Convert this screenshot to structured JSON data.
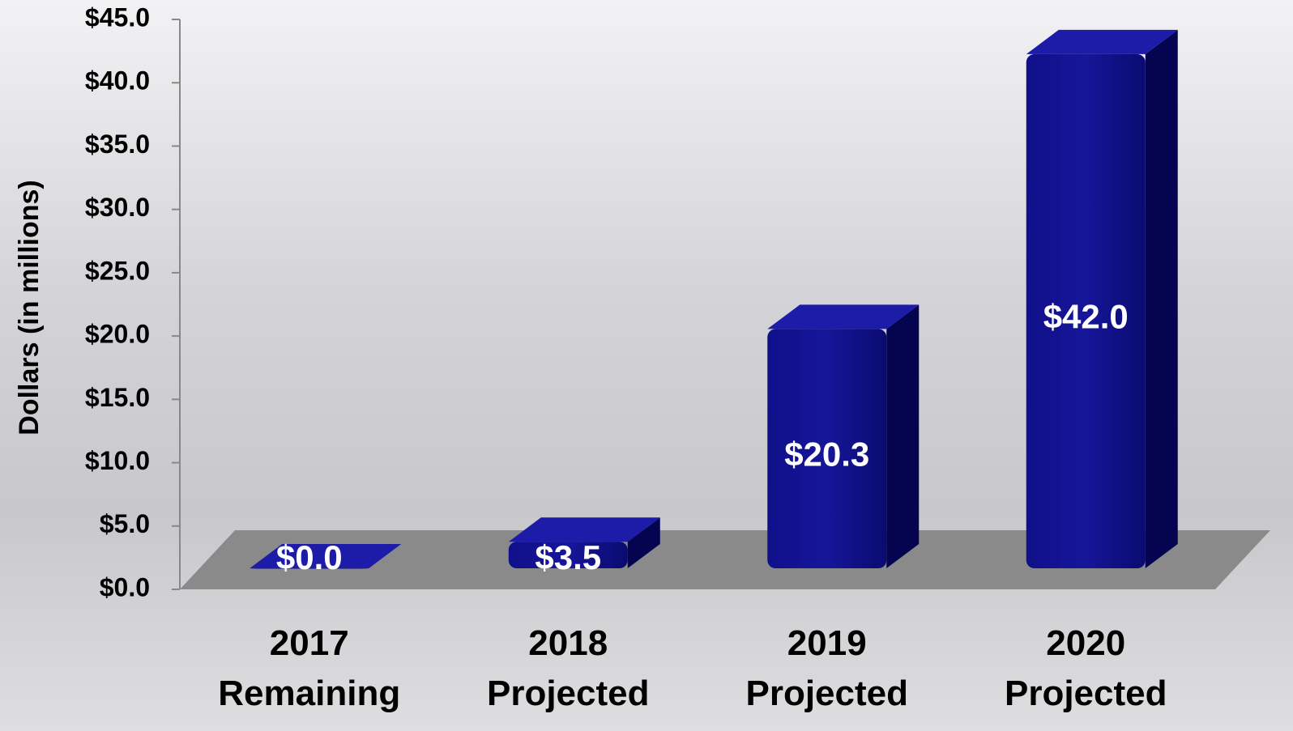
{
  "chart_data": {
    "type": "bar",
    "y_axis_label": "Dollars (in millions)",
    "categories": [
      "2017\nRemaining",
      "2018\nProjected",
      "2019\nProjected",
      "2020\nProjected"
    ],
    "values": [
      0,
      3.5,
      20.3,
      42.0
    ],
    "value_labels": [
      "$0.0",
      "$3.5",
      "$20.3",
      "$42.0"
    ],
    "color": "#0a0a78",
    "ylim": [
      0,
      45
    ],
    "yticks": [
      {
        "value": 0,
        "label": "$0.0"
      },
      {
        "value": 5,
        "label": "$5.0"
      },
      {
        "value": 10,
        "label": "$10.0"
      },
      {
        "value": 15,
        "label": "$15.0"
      },
      {
        "value": 20,
        "label": "$20.0"
      },
      {
        "value": 25,
        "label": "$25.0"
      },
      {
        "value": 30,
        "label": "$30.0"
      },
      {
        "value": 35,
        "label": "$35.0"
      },
      {
        "value": 40,
        "label": "$40.0"
      },
      {
        "value": 45,
        "label": "$45.0"
      }
    ]
  }
}
